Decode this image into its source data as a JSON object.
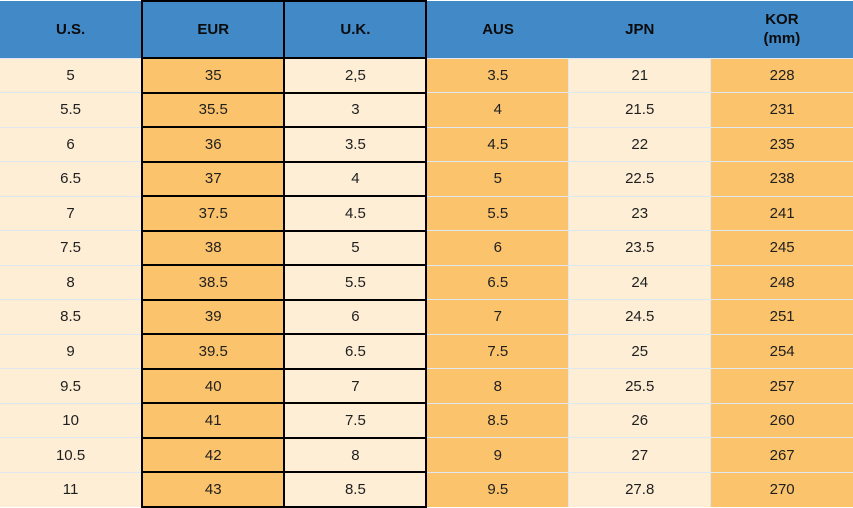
{
  "table": {
    "columns": [
      {
        "key": "us",
        "label": "U.S."
      },
      {
        "key": "eur",
        "label": "EUR"
      },
      {
        "key": "uk",
        "label": "U.K."
      },
      {
        "key": "aus",
        "label": "AUS"
      },
      {
        "key": "jpn",
        "label": "JPN"
      },
      {
        "key": "kor",
        "label": "KOR",
        "label_line2": "(mm)"
      }
    ],
    "rows": [
      [
        "5",
        "35",
        "2,5",
        "3.5",
        "21",
        "228"
      ],
      [
        "5.5",
        "35.5",
        "3",
        "4",
        "21.5",
        "231"
      ],
      [
        "6",
        "36",
        "3.5",
        "4.5",
        "22",
        "235"
      ],
      [
        "6.5",
        "37",
        "4",
        "5",
        "22.5",
        "238"
      ],
      [
        "7",
        "37.5",
        "4.5",
        "5.5",
        "23",
        "241"
      ],
      [
        "7.5",
        "38",
        "5",
        "6",
        "23.5",
        "245"
      ],
      [
        "8",
        "38.5",
        "5.5",
        "6.5",
        "24",
        "248"
      ],
      [
        "8.5",
        "39",
        "6",
        "7",
        "24.5",
        "251"
      ],
      [
        "9",
        "39.5",
        "6.5",
        "7.5",
        "25",
        "254"
      ],
      [
        "9.5",
        "40",
        "7",
        "8",
        "25.5",
        "257"
      ],
      [
        "10",
        "41",
        "7.5",
        "8.5",
        "26",
        "260"
      ],
      [
        "10.5",
        "42",
        "8",
        "9",
        "27",
        "267"
      ],
      [
        "11",
        "43",
        "8.5",
        "9.5",
        "27.8",
        "270"
      ]
    ]
  },
  "colors": {
    "header_blue": "#4189c7",
    "cell_orange": "#fbc36c",
    "cell_cream": "#fdeed5",
    "outline_black": "#000000",
    "separator_light": "#dfe8f1",
    "text": "#1f1f1f"
  }
}
